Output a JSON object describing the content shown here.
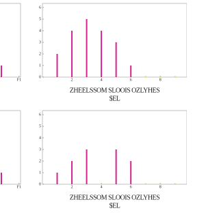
{
  "chart_data": [
    {
      "type": "bar",
      "x": [
        8.5
      ],
      "values": [
        1
      ],
      "color": "#d6218f",
      "xlim": [
        0,
        9.8
      ],
      "ylim": [
        0,
        6
      ],
      "xticks": [
        {
          "value": 9.7,
          "label": "F1"
        }
      ],
      "yticks": []
    },
    {
      "type": "bar",
      "title": "ZHEELSSOM SLOOIS OZLYHES",
      "subtitle": "$EL",
      "x": [
        1,
        2,
        3,
        4,
        5,
        6,
        7,
        8,
        9
      ],
      "values": [
        2,
        4,
        5,
        4,
        3,
        1,
        0,
        0,
        0
      ],
      "color": "#d6218f",
      "zero_color": "#e8d44d",
      "xlim": [
        0,
        9.8
      ],
      "ylim": [
        0,
        6
      ],
      "xticks": [
        2,
        4,
        6,
        8
      ],
      "yticks": [
        0,
        1,
        2,
        3,
        4,
        5,
        6
      ]
    },
    {
      "type": "bar",
      "x": [
        8.5
      ],
      "values": [
        1
      ],
      "color": "#d6218f",
      "xlim": [
        0,
        9.8
      ],
      "ylim": [
        0,
        6
      ],
      "xticks": [
        {
          "value": 9.7,
          "label": "F1"
        }
      ],
      "yticks": []
    },
    {
      "type": "bar",
      "title": "ZHEELSSOM SLOOIS OZLYHES",
      "subtitle": "$EL",
      "x": [
        1,
        2,
        3,
        4,
        5,
        6,
        7,
        8,
        9
      ],
      "values": [
        1,
        2,
        3,
        0,
        3,
        2,
        0,
        0,
        0
      ],
      "color": "#d6218f",
      "zero_color": "#e8d44d",
      "xlim": [
        0,
        9.8
      ],
      "ylim": [
        0,
        6
      ],
      "xticks": [
        2,
        4,
        6,
        8
      ],
      "yticks": [
        0,
        1,
        2,
        3,
        4,
        5,
        6
      ]
    }
  ]
}
